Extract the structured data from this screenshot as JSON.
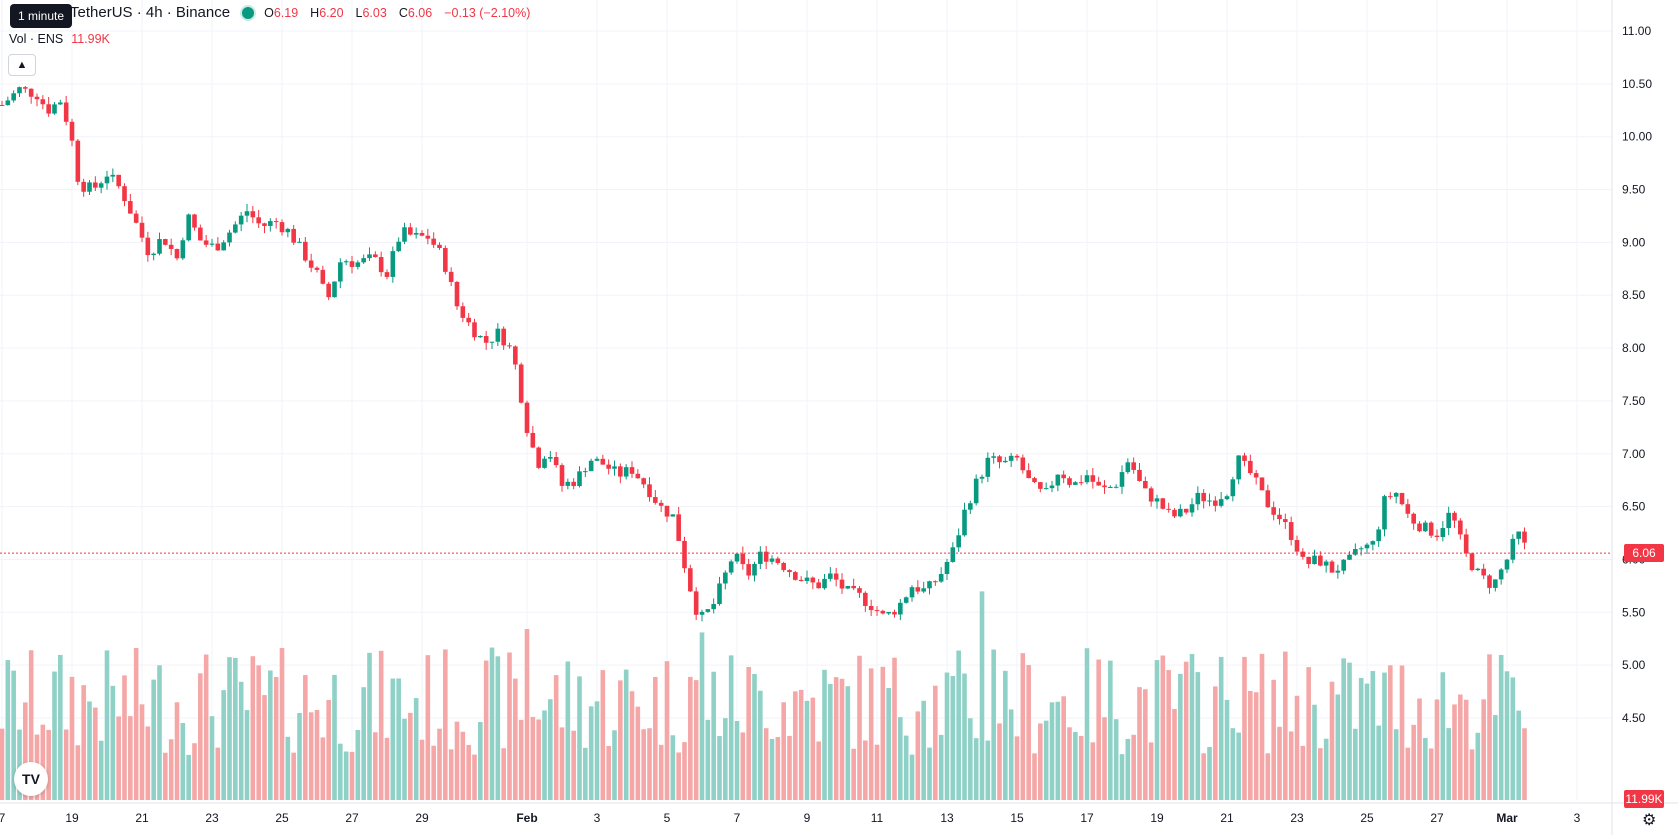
{
  "legend": {
    "symbol": "TetherUS · 4h · Binance",
    "open_label": "O",
    "open": "6.19",
    "high_label": "H",
    "high": "6.20",
    "low_label": "L",
    "low": "6.03",
    "close_label": "C",
    "close": "6.06",
    "change": "−0.13 (−2.10%)"
  },
  "tooltip": "1 minute",
  "volume_legend": {
    "label": "Vol · ENS",
    "value": "11.99K"
  },
  "collapse_icon": "chevron-up-icon",
  "logo_text": "TV",
  "last_price_tag": "6.06",
  "last_volume_tag": "11.99K",
  "colors": {
    "up": "#089981",
    "down": "#f23645",
    "up_vol": "#8fd1c6",
    "down_vol": "#f5a7a7",
    "grid": "#f0f3fa"
  },
  "chart_data": {
    "type": "candlestick",
    "y_ticks": [
      "11.00",
      "10.50",
      "10.00",
      "9.50",
      "9.00",
      "8.50",
      "8.00",
      "7.50",
      "7.00",
      "6.50",
      "6.00",
      "5.50",
      "5.00",
      "4.50"
    ],
    "ylim": [
      4.25,
      11.0
    ],
    "x_ticks": [
      {
        "label": "7",
        "day": 17
      },
      {
        "label": "19",
        "day": 19
      },
      {
        "label": "21",
        "day": 21
      },
      {
        "label": "23",
        "day": 23
      },
      {
        "label": "25",
        "day": 25
      },
      {
        "label": "27",
        "day": 27
      },
      {
        "label": "29",
        "day": 29
      },
      {
        "label": "Feb",
        "day": 32
      },
      {
        "label": "3",
        "day": 34
      },
      {
        "label": "5",
        "day": 36
      },
      {
        "label": "7",
        "day": 38
      },
      {
        "label": "9",
        "day": 40
      },
      {
        "label": "11",
        "day": 42
      },
      {
        "label": "13",
        "day": 44
      },
      {
        "label": "15",
        "day": 46
      },
      {
        "label": "17",
        "day": 48
      },
      {
        "label": "19",
        "day": 50
      },
      {
        "label": "21",
        "day": 52
      },
      {
        "label": "23",
        "day": 54
      },
      {
        "label": "25",
        "day": 56
      },
      {
        "label": "27",
        "day": 58
      },
      {
        "label": "Mar",
        "day": 60
      },
      {
        "label": "3",
        "day": 62
      }
    ],
    "grid": true,
    "last_price": 6.06,
    "close_path": [
      [
        17.0,
        10.3
      ],
      [
        17.5,
        10.45
      ],
      [
        18.0,
        10.4
      ],
      [
        18.3,
        10.25
      ],
      [
        18.7,
        10.35
      ],
      [
        19.0,
        9.95
      ],
      [
        19.2,
        9.55
      ],
      [
        19.6,
        9.5
      ],
      [
        20.0,
        9.65
      ],
      [
        20.4,
        9.5
      ],
      [
        20.8,
        9.2
      ],
      [
        21.2,
        8.9
      ],
      [
        21.6,
        9.05
      ],
      [
        22.0,
        8.85
      ],
      [
        22.3,
        9.25
      ],
      [
        22.7,
        9.0
      ],
      [
        23.1,
        8.95
      ],
      [
        23.5,
        9.1
      ],
      [
        24.0,
        9.3
      ],
      [
        24.4,
        9.15
      ],
      [
        24.8,
        9.2
      ],
      [
        25.2,
        9.1
      ],
      [
        25.6,
        8.9
      ],
      [
        26.0,
        8.7
      ],
      [
        26.3,
        8.45
      ],
      [
        26.7,
        8.85
      ],
      [
        27.1,
        8.8
      ],
      [
        27.6,
        8.85
      ],
      [
        28.0,
        8.7
      ],
      [
        28.4,
        9.1
      ],
      [
        28.8,
        9.05
      ],
      [
        29.2,
        9.05
      ],
      [
        29.6,
        8.85
      ],
      [
        30.0,
        8.4
      ],
      [
        30.4,
        8.2
      ],
      [
        30.8,
        8.05
      ],
      [
        31.2,
        8.15
      ],
      [
        31.6,
        7.95
      ],
      [
        32.0,
        7.25
      ],
      [
        32.3,
        6.9
      ],
      [
        32.6,
        7.05
      ],
      [
        33.0,
        6.7
      ],
      [
        33.4,
        6.75
      ],
      [
        33.8,
        6.95
      ],
      [
        34.2,
        6.9
      ],
      [
        34.6,
        6.8
      ],
      [
        35.0,
        6.85
      ],
      [
        35.4,
        6.7
      ],
      [
        35.8,
        6.5
      ],
      [
        36.2,
        6.4
      ],
      [
        36.5,
        5.95
      ],
      [
        36.8,
        5.55
      ],
      [
        37.0,
        5.45
      ],
      [
        37.3,
        5.55
      ],
      [
        37.6,
        5.8
      ],
      [
        37.9,
        6.05
      ],
      [
        38.3,
        5.85
      ],
      [
        38.7,
        6.05
      ],
      [
        39.1,
        6.0
      ],
      [
        39.5,
        5.9
      ],
      [
        39.9,
        5.8
      ],
      [
        40.3,
        5.75
      ],
      [
        40.7,
        5.85
      ],
      [
        41.1,
        5.7
      ],
      [
        41.5,
        5.65
      ],
      [
        41.9,
        5.55
      ],
      [
        42.2,
        5.45
      ],
      [
        42.6,
        5.55
      ],
      [
        43.0,
        5.75
      ],
      [
        43.4,
        5.7
      ],
      [
        43.8,
        5.85
      ],
      [
        44.2,
        6.1
      ],
      [
        44.5,
        6.45
      ],
      [
        44.8,
        6.7
      ],
      [
        45.2,
        6.95
      ],
      [
        45.6,
        6.9
      ],
      [
        46.0,
        6.95
      ],
      [
        46.4,
        6.7
      ],
      [
        46.8,
        6.6
      ],
      [
        47.2,
        6.85
      ],
      [
        47.6,
        6.7
      ],
      [
        48.0,
        6.8
      ],
      [
        48.4,
        6.65
      ],
      [
        48.8,
        6.7
      ],
      [
        49.2,
        6.95
      ],
      [
        49.6,
        6.65
      ],
      [
        50.0,
        6.55
      ],
      [
        50.4,
        6.4
      ],
      [
        50.8,
        6.45
      ],
      [
        51.2,
        6.6
      ],
      [
        51.6,
        6.55
      ],
      [
        52.0,
        6.65
      ],
      [
        52.3,
        6.95
      ],
      [
        52.7,
        6.8
      ],
      [
        53.1,
        6.55
      ],
      [
        53.5,
        6.4
      ],
      [
        53.9,
        6.2
      ],
      [
        54.2,
        5.95
      ],
      [
        54.6,
        6.0
      ],
      [
        55.0,
        5.9
      ],
      [
        55.4,
        5.95
      ],
      [
        55.8,
        6.1
      ],
      [
        56.2,
        6.15
      ],
      [
        56.5,
        6.55
      ],
      [
        56.8,
        6.65
      ],
      [
        57.2,
        6.4
      ],
      [
        57.6,
        6.3
      ],
      [
        58.0,
        6.25
      ],
      [
        58.4,
        6.45
      ],
      [
        58.8,
        6.05
      ],
      [
        59.2,
        5.85
      ],
      [
        59.6,
        5.75
      ],
      [
        60.0,
        6.0
      ],
      [
        60.3,
        6.25
      ],
      [
        60.6,
        6.06
      ]
    ],
    "volume_spikes": [
      {
        "day": 19.0,
        "value": 0.72
      },
      {
        "day": 25.7,
        "value": 0.36
      },
      {
        "day": 32.0,
        "value": 1.0
      },
      {
        "day": 31.8,
        "value": 0.42
      },
      {
        "day": 36.0,
        "value": 0.62
      },
      {
        "day": 36.6,
        "value": 0.72
      },
      {
        "day": 37.0,
        "value": 0.98
      },
      {
        "day": 37.8,
        "value": 0.68
      },
      {
        "day": 38.8,
        "value": 0.42
      },
      {
        "day": 44.0,
        "value": 0.52
      },
      {
        "day": 44.5,
        "value": 0.58
      },
      {
        "day": 45.0,
        "value": 1.22
      },
      {
        "day": 45.3,
        "value": 0.88
      },
      {
        "day": 45.7,
        "value": 0.68
      },
      {
        "day": 43.3,
        "value": 0.58
      },
      {
        "day": 52.2,
        "value": 0.42
      },
      {
        "day": 56.5,
        "value": 0.4
      },
      {
        "day": 57.4,
        "value": 0.38
      }
    ]
  }
}
